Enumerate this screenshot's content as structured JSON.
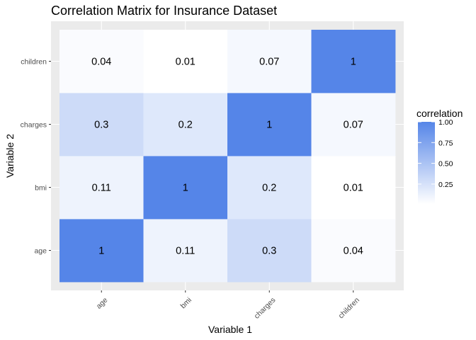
{
  "chart_data": {
    "type": "heatmap",
    "title": "Correlation Matrix for Insurance Dataset",
    "xlabel": "Variable 1",
    "ylabel": "Variable 2",
    "x_categories": [
      "age",
      "bmi",
      "charges",
      "children"
    ],
    "y_categories": [
      "age",
      "bmi",
      "charges",
      "children"
    ],
    "cells": [
      {
        "x": "age",
        "y": "age",
        "value": 1,
        "label": "1"
      },
      {
        "x": "bmi",
        "y": "age",
        "value": 0.11,
        "label": "0.11"
      },
      {
        "x": "charges",
        "y": "age",
        "value": 0.3,
        "label": "0.3"
      },
      {
        "x": "children",
        "y": "age",
        "value": 0.04,
        "label": "0.04"
      },
      {
        "x": "age",
        "y": "bmi",
        "value": 0.11,
        "label": "0.11"
      },
      {
        "x": "bmi",
        "y": "bmi",
        "value": 1,
        "label": "1"
      },
      {
        "x": "charges",
        "y": "bmi",
        "value": 0.2,
        "label": "0.2"
      },
      {
        "x": "children",
        "y": "bmi",
        "value": 0.01,
        "label": "0.01"
      },
      {
        "x": "age",
        "y": "charges",
        "value": 0.3,
        "label": "0.3"
      },
      {
        "x": "bmi",
        "y": "charges",
        "value": 0.2,
        "label": "0.2"
      },
      {
        "x": "charges",
        "y": "charges",
        "value": 1,
        "label": "1"
      },
      {
        "x": "children",
        "y": "charges",
        "value": 0.07,
        "label": "0.07"
      },
      {
        "x": "age",
        "y": "children",
        "value": 0.04,
        "label": "0.04"
      },
      {
        "x": "bmi",
        "y": "children",
        "value": 0.01,
        "label": "0.01"
      },
      {
        "x": "charges",
        "y": "children",
        "value": 0.07,
        "label": "0.07"
      },
      {
        "x": "children",
        "y": "children",
        "value": 1,
        "label": "1"
      }
    ],
    "legend": {
      "title": "correlation",
      "ticks": [
        "1.00",
        "0.75",
        "0.50",
        "0.25"
      ],
      "tick_values": [
        1.0,
        0.75,
        0.5,
        0.25
      ],
      "range": [
        0.01,
        1.0
      ],
      "placement": "right"
    },
    "colors": {
      "low": "#ffffff",
      "high": "#5585e8",
      "panel": "#ebebeb",
      "grid": "#ffffff"
    }
  }
}
